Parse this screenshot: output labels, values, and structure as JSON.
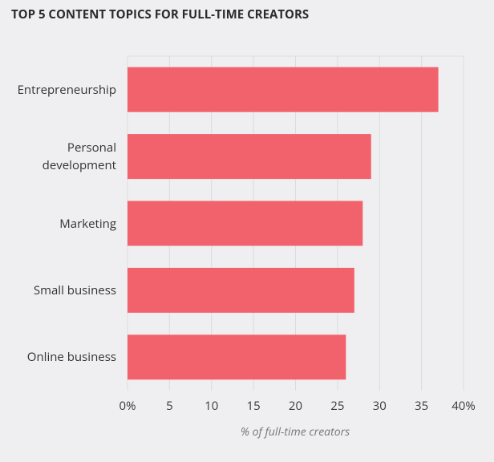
{
  "chart_data": {
    "type": "bar",
    "orientation": "horizontal",
    "title": "TOP 5 CONTENT TOPICS FOR FULL-TIME CREATORS",
    "x_label": "% of full-time creators",
    "categories": [
      "Entrepreneurship",
      "Personal development",
      "Marketing",
      "Small business",
      "Online business"
    ],
    "values": [
      37,
      29,
      28,
      27,
      26
    ],
    "color": "#f2626c",
    "xlim": [
      0,
      40
    ],
    "xticks": [
      {
        "value": 0,
        "label": "0%"
      },
      5,
      10,
      15,
      20,
      25,
      30,
      35,
      {
        "value": 40,
        "label": "40%"
      }
    ],
    "grid": true
  }
}
